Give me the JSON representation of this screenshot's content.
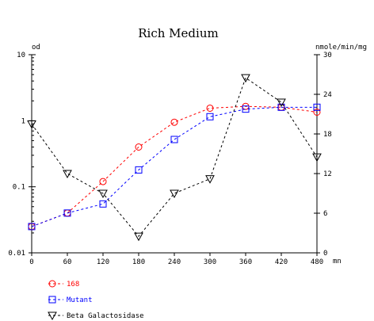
{
  "chart_data": {
    "type": "line",
    "title": "Rich Medium",
    "x": [
      0,
      60,
      120,
      180,
      240,
      300,
      360,
      420,
      480
    ],
    "x_unit": "mn",
    "xlim": [
      0,
      480
    ],
    "x_ticks": [
      "0",
      "60",
      "120",
      "180",
      "240",
      "300",
      "360",
      "420",
      "480"
    ],
    "y_left": {
      "label": "od",
      "scale": "log",
      "ylim": [
        0.01,
        10
      ],
      "ticks": [
        {
          "value": 0.01,
          "label": "0.01"
        },
        {
          "value": 0.1,
          "label": "0.1"
        },
        {
          "value": 1,
          "label": "1"
        },
        {
          "value": 10,
          "label": "10"
        }
      ]
    },
    "y_right": {
      "label": "nmole/min/mg",
      "scale": "linear",
      "ylim": [
        0,
        30
      ],
      "ticks": [
        "0",
        "6",
        "12",
        "18",
        "24",
        "30"
      ]
    },
    "grid": false,
    "legend_position": "bottom-left",
    "series": [
      {
        "name": "168",
        "axis": "left",
        "color": "#ff0000",
        "marker": "circle",
        "linestyle": "dashed",
        "values": [
          0.025,
          0.04,
          0.12,
          0.4,
          0.95,
          1.55,
          1.65,
          1.6,
          1.35
        ]
      },
      {
        "name": "Mutant",
        "axis": "left",
        "color": "#0000ff",
        "marker": "square",
        "linestyle": "dashed",
        "values": [
          0.025,
          0.04,
          0.055,
          0.18,
          0.52,
          1.15,
          1.5,
          1.6,
          1.6
        ]
      },
      {
        "name": "Beta Galactosidase",
        "axis": "right",
        "color": "#000000",
        "marker": "triangle-down",
        "linestyle": "dashed",
        "values": [
          19.5,
          12,
          9,
          2.5,
          9,
          11.2,
          26.5,
          22.8,
          14.5
        ]
      }
    ]
  }
}
